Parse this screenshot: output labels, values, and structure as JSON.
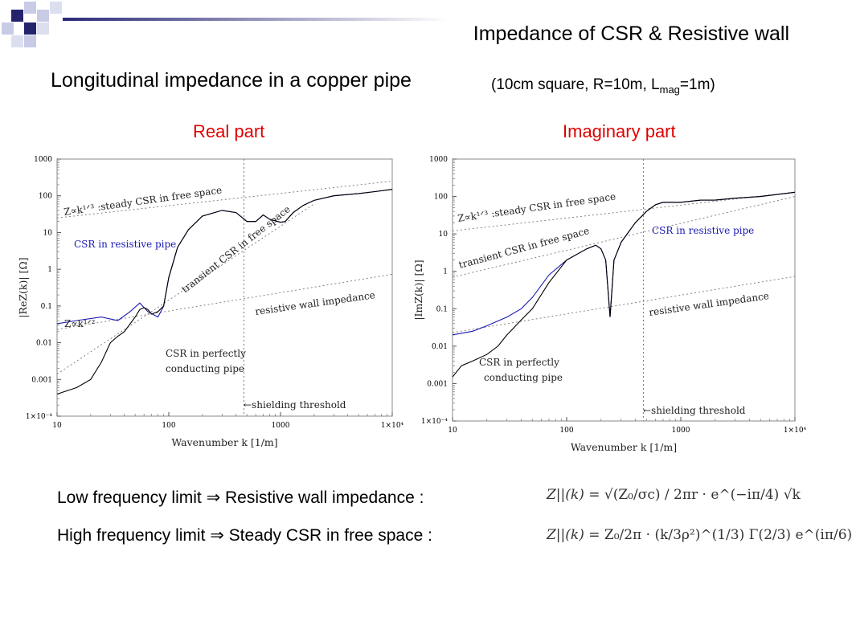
{
  "slide_title": "Impedance of CSR & Resistive wall",
  "subtitle": "Longitudinal impedance in a copper pipe",
  "params": {
    "prefix": "(10cm square, R=10m, L",
    "sub": "mag",
    "suffix": "=1m)"
  },
  "colors": {
    "accent_red": "#e00000",
    "series_blue": "#1a1ab4",
    "series_black": "#000000",
    "deco_navy": "#24246e"
  },
  "chart_data": [
    {
      "type": "line",
      "title": "Real part",
      "xlabel": "Wavenumber   k [1/m]",
      "ylabel": "|ReZ(k)| [Ω]",
      "xscale": "log",
      "yscale": "log",
      "xlim": [
        10,
        10000
      ],
      "ylim": [
        0.0001,
        1000
      ],
      "xticks": [
        "10",
        "100",
        "1000",
        "1×10⁴"
      ],
      "yticks": [
        "1×10⁻⁴",
        "0.001",
        "0.01",
        "0.1",
        "1",
        "10",
        "100",
        "1000"
      ],
      "shielding_k": 470,
      "annotations": {
        "steady": "Z∝k¹ᐟ³ :steady CSR in free space",
        "transient": "transient CSR in free space",
        "csr_resistive": "CSR in resistive pipe",
        "resistive_wall": "resistive wall impedance",
        "half_power": "Z∝k¹ᐟ²",
        "csr_perfect_1": "CSR in perfectly",
        "csr_perfect_2": "conducting pipe",
        "shielding": "←shielding threshold"
      },
      "guides": [
        {
          "name": "steady CSR in free space",
          "points": [
            [
              10,
              25
            ],
            [
              10000,
              250
            ]
          ]
        },
        {
          "name": "transient CSR in free space",
          "points": [
            [
              10,
              0.0014
            ],
            [
              2000,
              60
            ]
          ]
        },
        {
          "name": "resistive wall impedance",
          "points": [
            [
              10,
              0.023
            ],
            [
              10000,
              0.73
            ]
          ]
        }
      ],
      "series": [
        {
          "name": "CSR in resistive pipe",
          "color": "#1a1ab4",
          "points": [
            [
              10,
              0.033
            ],
            [
              15,
              0.04
            ],
            [
              25,
              0.05
            ],
            [
              35,
              0.04
            ],
            [
              45,
              0.07
            ],
            [
              55,
              0.12
            ],
            [
              65,
              0.07
            ],
            [
              80,
              0.05
            ],
            [
              90,
              0.1
            ],
            [
              100,
              0.6
            ],
            [
              120,
              4
            ],
            [
              150,
              12
            ],
            [
              200,
              28
            ],
            [
              300,
              40
            ],
            [
              400,
              35
            ],
            [
              500,
              20
            ],
            [
              600,
              20
            ],
            [
              700,
              30
            ],
            [
              800,
              23
            ],
            [
              1000,
              19
            ],
            [
              1100,
              20
            ],
            [
              1300,
              35
            ],
            [
              1600,
              55
            ],
            [
              2000,
              75
            ],
            [
              3000,
              100
            ],
            [
              5000,
              115
            ],
            [
              7000,
              130
            ],
            [
              10000,
              150
            ]
          ]
        },
        {
          "name": "CSR in perfectly conducting pipe",
          "color": "#000000",
          "points": [
            [
              10,
              0.0004
            ],
            [
              15,
              0.0006
            ],
            [
              20,
              0.001
            ],
            [
              25,
              0.003
            ],
            [
              30,
              0.01
            ],
            [
              35,
              0.015
            ],
            [
              40,
              0.02
            ],
            [
              50,
              0.05
            ],
            [
              55,
              0.08
            ],
            [
              60,
              0.09
            ],
            [
              65,
              0.08
            ],
            [
              70,
              0.06
            ],
            [
              80,
              0.07
            ],
            [
              90,
              0.1
            ],
            [
              100,
              0.6
            ],
            [
              120,
              4
            ],
            [
              150,
              12
            ],
            [
              200,
              28
            ],
            [
              300,
              40
            ],
            [
              400,
              35
            ],
            [
              500,
              20
            ],
            [
              600,
              20
            ],
            [
              700,
              30
            ],
            [
              800,
              23
            ],
            [
              1000,
              19
            ],
            [
              1100,
              20
            ],
            [
              1300,
              35
            ],
            [
              1600,
              55
            ],
            [
              2000,
              75
            ],
            [
              3000,
              100
            ],
            [
              5000,
              115
            ],
            [
              7000,
              130
            ],
            [
              10000,
              150
            ]
          ]
        }
      ]
    },
    {
      "type": "line",
      "title": "Imaginary part",
      "xlabel": "Wavenumber   k [1/m]",
      "ylabel": "|ImZ(k)| [Ω]",
      "xscale": "log",
      "yscale": "log",
      "xlim": [
        10,
        10000
      ],
      "ylim": [
        0.0001,
        1000
      ],
      "xticks": [
        "10",
        "100",
        "1000",
        "1×10⁴"
      ],
      "yticks": [
        "1×10⁻⁴",
        "0.001",
        "0.01",
        "0.1",
        "1",
        "10",
        "100",
        "1000"
      ],
      "shielding_k": 470,
      "annotations": {
        "steady": "Z∝k¹ᐟ³ :steady CSR in free space",
        "transient": "transient CSR in free space",
        "csr_resistive": "CSR in resistive pipe",
        "resistive_wall": "resistive wall impedance",
        "csr_perfect_1": "CSR in perfectly",
        "csr_perfect_2": "conducting pipe",
        "shielding": "←shielding threshold"
      },
      "guides": [
        {
          "name": "steady CSR in free space",
          "points": [
            [
              10,
              12
            ],
            [
              10000,
              130
            ]
          ]
        },
        {
          "name": "transient CSR in free space",
          "points": [
            [
              10,
              0.7
            ],
            [
              10000,
              100
            ]
          ]
        },
        {
          "name": "resistive wall impedance",
          "points": [
            [
              10,
              0.023
            ],
            [
              10000,
              0.73
            ]
          ]
        }
      ],
      "series": [
        {
          "name": "CSR in resistive pipe",
          "color": "#1a1ab4",
          "points": [
            [
              10,
              0.02
            ],
            [
              15,
              0.025
            ],
            [
              20,
              0.035
            ],
            [
              30,
              0.06
            ],
            [
              40,
              0.1
            ],
            [
              50,
              0.2
            ],
            [
              70,
              0.8
            ],
            [
              100,
              2
            ],
            [
              150,
              4
            ],
            [
              180,
              5
            ],
            [
              200,
              4
            ],
            [
              220,
              2
            ],
            [
              240,
              0.06
            ],
            [
              260,
              2
            ],
            [
              300,
              6
            ],
            [
              400,
              20
            ],
            [
              500,
              40
            ],
            [
              600,
              60
            ],
            [
              700,
              70
            ],
            [
              1000,
              70
            ],
            [
              1500,
              80
            ],
            [
              2000,
              80
            ],
            [
              3000,
              90
            ],
            [
              5000,
              100
            ],
            [
              10000,
              130
            ]
          ]
        },
        {
          "name": "CSR in perfectly conducting pipe",
          "color": "#000000",
          "points": [
            [
              10,
              0.0015
            ],
            [
              12,
              0.003
            ],
            [
              15,
              0.004
            ],
            [
              20,
              0.006
            ],
            [
              25,
              0.01
            ],
            [
              30,
              0.02
            ],
            [
              40,
              0.05
            ],
            [
              50,
              0.1
            ],
            [
              70,
              0.5
            ],
            [
              100,
              2
            ],
            [
              150,
              4
            ],
            [
              180,
              5
            ],
            [
              200,
              4
            ],
            [
              220,
              2
            ],
            [
              240,
              0.06
            ],
            [
              260,
              2
            ],
            [
              300,
              6
            ],
            [
              400,
              20
            ],
            [
              500,
              40
            ],
            [
              600,
              60
            ],
            [
              700,
              70
            ],
            [
              1000,
              70
            ],
            [
              1500,
              80
            ],
            [
              2000,
              80
            ],
            [
              3000,
              90
            ],
            [
              5000,
              100
            ],
            [
              10000,
              130
            ]
          ]
        }
      ]
    }
  ],
  "limits": {
    "low_label": "Low frequency limit  ⇒  Resistive wall impedance :",
    "high_label": "High frequency limit ⇒  Steady CSR in free space :",
    "low_formula": {
      "lhs": "Z||(k) =",
      "rhs": "√(Z₀/σc) / 2πr · e^(−iπ/4) √k"
    },
    "high_formula": {
      "lhs": "Z||(k) =",
      "rhs": "Z₀/2π · (k/3ρ²)^(1/3) Γ(2/3) e^(iπ/6)"
    }
  }
}
